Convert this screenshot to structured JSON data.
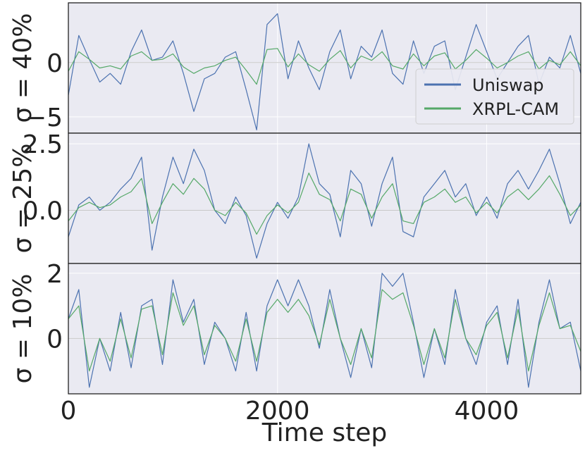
{
  "chart_data": {
    "type": "line",
    "xlabel": "Time step",
    "xlim": [
      0,
      4900
    ],
    "xticks": [
      0,
      2000,
      4000
    ],
    "xtick_labels": [
      "0",
      "2000",
      "4000"
    ],
    "grid": true,
    "legend": {
      "placement": "right",
      "panel": 0,
      "entries": [
        "Uniswap",
        "XRPL-CAM"
      ]
    },
    "colors": {
      "Uniswap": "#4c72b0",
      "XRPL-CAM": "#55a868",
      "background": "#eaeaf2",
      "grid": "#ffffff",
      "zero_line": "#c8c8c8"
    },
    "panels": [
      {
        "ylabel": "σ = 40%",
        "ylim": [
          -6.5,
          5.5
        ],
        "yticks": [
          -5,
          0
        ],
        "ytick_labels": [
          "−5",
          "0"
        ],
        "x": [
          0,
          100,
          200,
          300,
          400,
          500,
          600,
          700,
          800,
          900,
          1000,
          1100,
          1200,
          1300,
          1400,
          1500,
          1600,
          1700,
          1800,
          1900,
          2000,
          2100,
          2200,
          2300,
          2400,
          2500,
          2600,
          2700,
          2800,
          2900,
          3000,
          3100,
          3200,
          3300,
          3400,
          3500,
          3600,
          3700,
          3800,
          3900,
          4000,
          4100,
          4200,
          4300,
          4400,
          4500,
          4600,
          4700,
          4800,
          4900
        ],
        "series": [
          {
            "name": "Uniswap",
            "values": [
              -3.0,
              2.5,
              0.3,
              -1.8,
              -1.0,
              -2.0,
              1.0,
              3.0,
              0.2,
              0.5,
              2.0,
              -1.0,
              -4.5,
              -1.5,
              -1.0,
              0.5,
              1.0,
              -2.5,
              -6.2,
              3.5,
              4.5,
              -1.5,
              2.0,
              -0.5,
              -2.5,
              1.0,
              3.0,
              -1.5,
              1.5,
              0.5,
              3.0,
              -1.0,
              -2.0,
              2.0,
              -1.0,
              1.5,
              2.0,
              -2.5,
              0.5,
              3.5,
              1.0,
              -1.5,
              0.0,
              1.5,
              2.5,
              -2.0,
              0.5,
              -0.5,
              2.5,
              -1.0
            ]
          },
          {
            "name": "XRPL-CAM",
            "values": [
              -0.8,
              1.0,
              0.3,
              -0.5,
              -0.3,
              -0.6,
              0.6,
              1.0,
              0.2,
              0.3,
              0.8,
              -0.4,
              -1.0,
              -0.5,
              -0.3,
              0.2,
              0.5,
              -0.7,
              -2.0,
              1.2,
              1.3,
              -0.4,
              0.8,
              -0.2,
              -0.8,
              0.3,
              1.1,
              -0.5,
              0.6,
              0.2,
              1.0,
              -0.3,
              -0.6,
              0.8,
              -0.3,
              0.6,
              0.9,
              -0.6,
              0.2,
              1.2,
              0.4,
              -0.5,
              0.0,
              0.6,
              1.0,
              -0.6,
              0.2,
              -0.2,
              1.0,
              -0.3
            ]
          }
        ]
      },
      {
        "ylabel": "σ = 25%",
        "ylim": [
          -2.0,
          2.9
        ],
        "yticks": [
          0.0,
          2.5
        ],
        "ytick_labels": [
          "0.0",
          "2.5"
        ],
        "x": [
          0,
          100,
          200,
          300,
          400,
          500,
          600,
          700,
          800,
          900,
          1000,
          1100,
          1200,
          1300,
          1400,
          1500,
          1600,
          1700,
          1800,
          1900,
          2000,
          2100,
          2200,
          2300,
          2400,
          2500,
          2600,
          2700,
          2800,
          2900,
          3000,
          3100,
          3200,
          3300,
          3400,
          3500,
          3600,
          3700,
          3800,
          3900,
          4000,
          4100,
          4200,
          4300,
          4400,
          4500,
          4600,
          4700,
          4800,
          4900
        ],
        "series": [
          {
            "name": "Uniswap",
            "values": [
              -1.0,
              0.2,
              0.5,
              0.0,
              0.3,
              0.8,
              1.2,
              2.0,
              -1.5,
              0.5,
              2.0,
              1.0,
              2.3,
              1.5,
              0.0,
              -0.5,
              0.5,
              -0.2,
              -1.8,
              -0.5,
              0.3,
              -0.3,
              0.5,
              2.5,
              1.0,
              0.6,
              -1.0,
              1.5,
              1.0,
              -0.6,
              1.0,
              2.0,
              -0.8,
              -1.0,
              0.5,
              1.0,
              1.5,
              0.5,
              1.0,
              -0.2,
              0.5,
              -0.3,
              1.0,
              1.5,
              0.8,
              1.5,
              2.3,
              1.0,
              -0.5,
              0.3
            ]
          },
          {
            "name": "XRPL-CAM",
            "values": [
              -0.4,
              0.1,
              0.3,
              0.1,
              0.2,
              0.5,
              0.7,
              1.2,
              -0.5,
              0.3,
              1.0,
              0.6,
              1.2,
              0.8,
              0.0,
              -0.2,
              0.3,
              -0.1,
              -0.9,
              -0.2,
              0.2,
              -0.1,
              0.3,
              1.4,
              0.6,
              0.4,
              -0.4,
              0.8,
              0.6,
              -0.3,
              0.5,
              1.0,
              -0.4,
              -0.5,
              0.3,
              0.5,
              0.8,
              0.3,
              0.5,
              -0.1,
              0.3,
              -0.1,
              0.5,
              0.8,
              0.4,
              0.8,
              1.3,
              0.6,
              -0.2,
              0.2
            ]
          }
        ]
      },
      {
        "ylabel": "σ = 10%",
        "ylim": [
          -1.7,
          2.3
        ],
        "yticks": [
          0,
          2
        ],
        "ytick_labels": [
          "0",
          "2"
        ],
        "x": [
          0,
          100,
          200,
          300,
          400,
          500,
          600,
          700,
          800,
          900,
          1000,
          1100,
          1200,
          1300,
          1400,
          1500,
          1600,
          1700,
          1800,
          1900,
          2000,
          2100,
          2200,
          2300,
          2400,
          2500,
          2600,
          2700,
          2800,
          2900,
          3000,
          3100,
          3200,
          3300,
          3400,
          3500,
          3600,
          3700,
          3800,
          3900,
          4000,
          4100,
          4200,
          4300,
          4400,
          4500,
          4600,
          4700,
          4800,
          4900
        ],
        "series": [
          {
            "name": "Uniswap",
            "values": [
              0.6,
              1.5,
              -1.5,
              0.0,
              -1.0,
              0.8,
              -0.9,
              1.0,
              1.2,
              -0.8,
              1.8,
              0.5,
              1.2,
              -0.8,
              0.5,
              0.0,
              -1.0,
              0.8,
              -1.0,
              1.0,
              1.8,
              1.0,
              1.8,
              1.0,
              -0.3,
              1.5,
              0.0,
              -1.2,
              0.3,
              -0.9,
              2.0,
              1.6,
              2.0,
              0.5,
              -1.2,
              0.3,
              -0.8,
              1.5,
              0.0,
              -0.8,
              0.5,
              1.0,
              -0.8,
              1.2,
              -1.5,
              0.5,
              1.8,
              0.3,
              0.5,
              -1.0
            ]
          },
          {
            "name": "XRPL-CAM",
            "values": [
              0.6,
              1.0,
              -1.0,
              0.0,
              -0.7,
              0.6,
              -0.6,
              0.9,
              1.0,
              -0.5,
              1.4,
              0.4,
              1.0,
              -0.5,
              0.4,
              0.0,
              -0.7,
              0.6,
              -0.7,
              0.8,
              1.2,
              0.8,
              1.2,
              0.7,
              -0.2,
              1.2,
              0.0,
              -0.8,
              0.3,
              -0.6,
              1.5,
              1.2,
              1.4,
              0.4,
              -0.8,
              0.3,
              -0.6,
              1.2,
              0.0,
              -0.5,
              0.4,
              0.8,
              -0.6,
              0.9,
              -1.0,
              0.4,
              1.4,
              0.3,
              0.4,
              -0.4
            ]
          }
        ]
      }
    ]
  }
}
